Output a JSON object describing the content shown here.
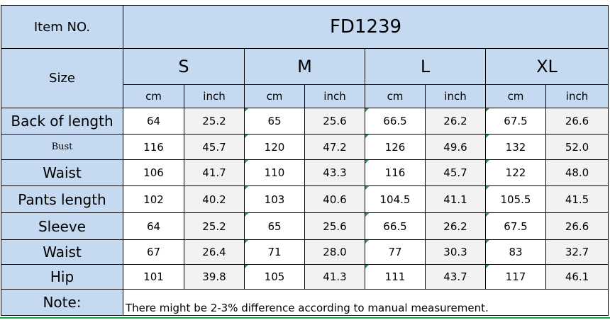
{
  "header": {
    "item_label": "Item NO.",
    "item_value": "FD1239",
    "size_label": "Size",
    "sizes": [
      "S",
      "M",
      "L",
      "XL"
    ],
    "unit_cm": "cm",
    "unit_inch": "inch"
  },
  "rows": [
    {
      "label": "Back of length",
      "values": [
        "64",
        "25.2",
        "65",
        "25.6",
        "66.5",
        "26.2",
        "67.5",
        "26.6"
      ]
    },
    {
      "label": "Bust",
      "values": [
        "116",
        "45.7",
        "120",
        "47.2",
        "126",
        "49.6",
        "132",
        "52.0"
      ]
    },
    {
      "label": "Waist",
      "values": [
        "106",
        "41.7",
        "110",
        "43.3",
        "116",
        "45.7",
        "122",
        "48.0"
      ]
    },
    {
      "label": "Pants length",
      "values": [
        "102",
        "40.2",
        "103",
        "40.6",
        "104.5",
        "41.1",
        "105.5",
        "41.5"
      ]
    },
    {
      "label": "Sleeve",
      "values": [
        "64",
        "25.2",
        "65",
        "25.6",
        "66.5",
        "26.2",
        "67.5",
        "26.6"
      ]
    },
    {
      "label": "Waist",
      "values": [
        "67",
        "26.4",
        "71",
        "28.0",
        "77",
        "30.3",
        "83",
        "32.7"
      ]
    },
    {
      "label": "Hip",
      "values": [
        "101",
        "39.8",
        "105",
        "41.3",
        "111",
        "43.7",
        "117",
        "46.1"
      ]
    }
  ],
  "note": {
    "label": "Note:",
    "text": "There might be 2-3% difference according to manual measurement."
  },
  "colors": {
    "header_fill": "#c5d9f1",
    "inch_fill": "#f2f2f2",
    "marker_green": "#1aa24b"
  }
}
